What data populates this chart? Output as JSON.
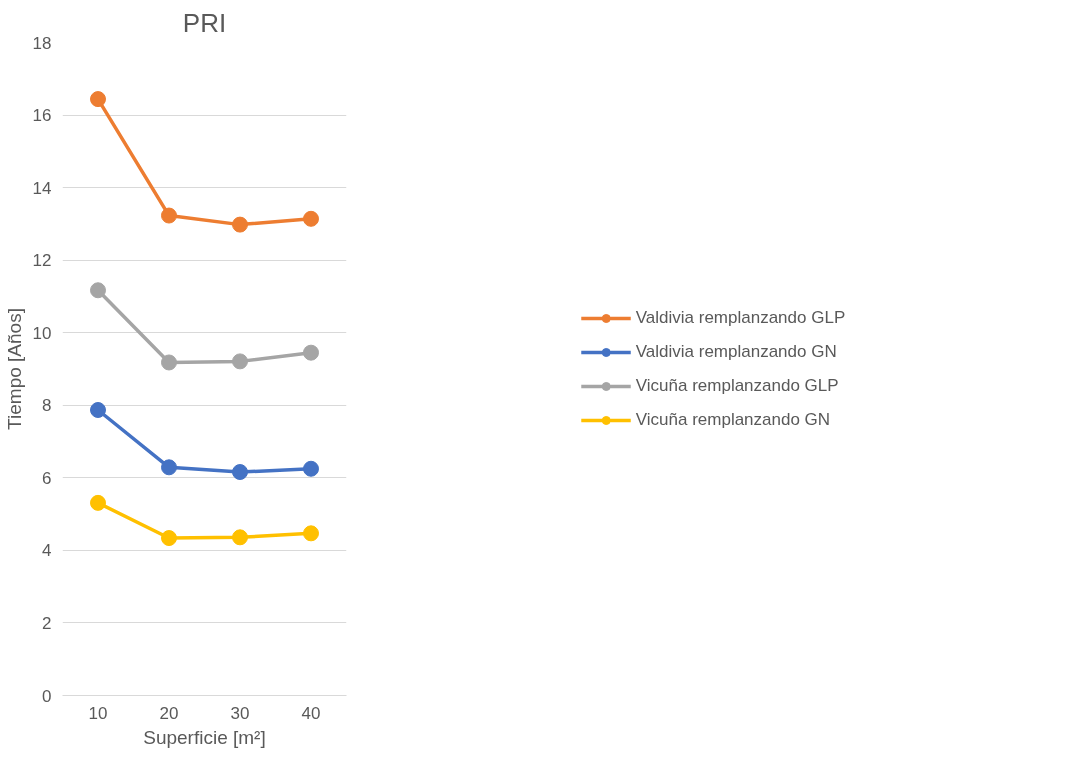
{
  "chart_data": {
    "type": "line",
    "title": "PRI",
    "xlabel": "Superficie [m²]",
    "ylabel": "Tiempo [Años]",
    "categories": [
      "10",
      "20",
      "30",
      "40"
    ],
    "series": [
      {
        "name": "Valdivia remplanzando GLP",
        "color": "#ed7d31",
        "values": [
          16.44,
          13.23,
          12.98,
          13.14
        ]
      },
      {
        "name": "Valdivia remplanzando GN",
        "color": "#4472c4",
        "values": [
          7.87,
          6.29,
          6.16,
          6.25
        ]
      },
      {
        "name": "Vicuña remplanzando GLP",
        "color": "#a5a5a5",
        "values": [
          11.17,
          9.18,
          9.21,
          9.45
        ]
      },
      {
        "name": "Vicuña remplanzando GN",
        "color": "#ffc000",
        "values": [
          5.31,
          4.34,
          4.36,
          4.47
        ]
      }
    ],
    "ylim": [
      0,
      18
    ],
    "yticks": [
      0,
      2,
      4,
      6,
      8,
      10,
      12,
      14,
      16,
      18
    ],
    "grid": "y",
    "legend": "right",
    "marker": "circle",
    "line_style": "solid"
  }
}
